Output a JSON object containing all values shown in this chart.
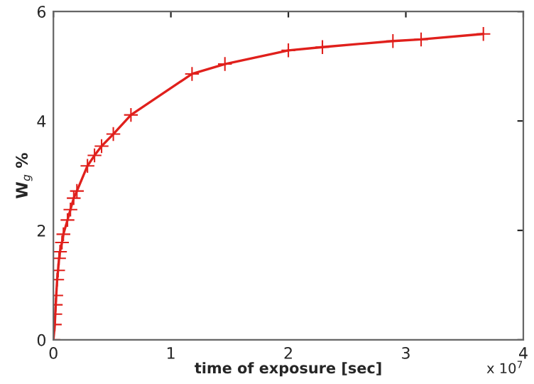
{
  "chart_data": {
    "type": "line",
    "xlabel": "time of exposure [sec]",
    "ylabel": "W$_{g}$ %",
    "annotations": [
      "x 10$^{7}$"
    ],
    "x": [
      0,
      0.012,
      0.016,
      0.02,
      0.024,
      0.032,
      0.04,
      0.048,
      0.056,
      0.073,
      0.085,
      0.12,
      0.145,
      0.173,
      0.2,
      0.29,
      0.35,
      0.41,
      0.51,
      0.66,
      1.18,
      1.46,
      2.0,
      2.29,
      2.89,
      3.13,
      3.66
    ],
    "series": [
      {
        "color": "#e0201c",
        "values": [
          0,
          0.28,
          0.47,
          0.64,
          0.81,
          1.1,
          1.27,
          1.49,
          1.61,
          1.78,
          1.93,
          2.19,
          2.38,
          2.59,
          2.72,
          3.18,
          3.37,
          3.54,
          3.76,
          4.11,
          4.86,
          5.04,
          5.29,
          5.35,
          5.46,
          5.49,
          5.59
        ]
      }
    ],
    "marker": "cross",
    "line_style": "solid",
    "grid": false,
    "legend": false,
    "xlim": [
      0,
      4
    ],
    "xticks": [
      0,
      1,
      2,
      3,
      4
    ],
    "ylim": [
      0,
      6
    ],
    "yticks": [
      0,
      2,
      4,
      6
    ]
  }
}
